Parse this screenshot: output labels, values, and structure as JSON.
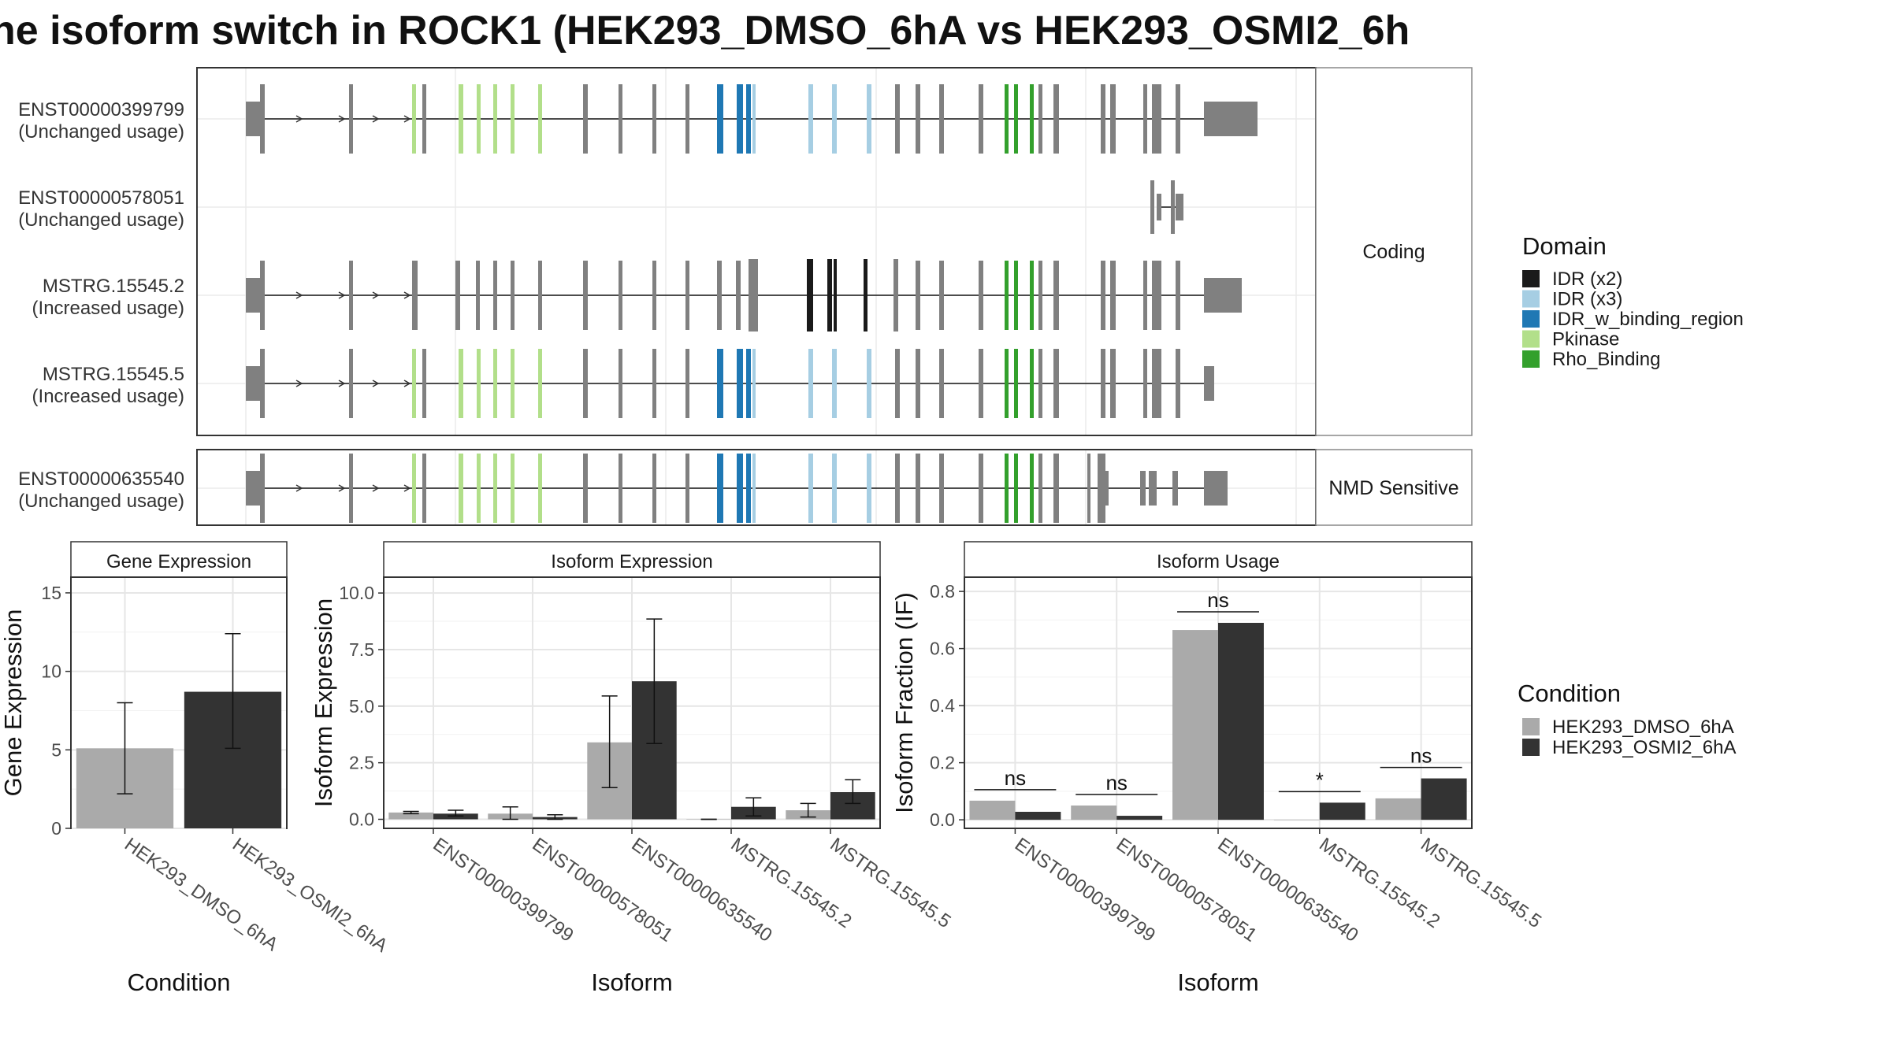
{
  "title": "ne isoform switch in ROCK1 (HEK293_DMSO_6hA vs HEK293_OSMI2_6h",
  "colors": {
    "exon": "#808080",
    "dmso": "#aaaaaa",
    "osmi": "#333333",
    "IDR (x2)": "#1a1a1a",
    "IDR (x3)": "#a6cee3",
    "IDR_w_binding_region": "#1f78b4",
    "Pkinase": "#b2df8a",
    "Rho_Binding": "#33a02c"
  },
  "transcripts": {
    "strip_labels": [
      "Coding",
      "NMD Sensitive"
    ],
    "rows": [
      {
        "id": "ENST00000399799",
        "usage": "(Unchanged usage)",
        "group": "Coding"
      },
      {
        "id": "ENST00000578051",
        "usage": "(Unchanged usage)",
        "group": "Coding"
      },
      {
        "id": "MSTRG.15545.2",
        "usage": "(Increased usage)",
        "group": "Coding"
      },
      {
        "id": "MSTRG.15545.5",
        "usage": "(Increased usage)",
        "group": "Coding"
      },
      {
        "id": "ENST00000635540",
        "usage": "(Unchanged usage)",
        "group": "NMD Sensitive"
      }
    ]
  },
  "domain_legend": {
    "title": "Domain",
    "items": [
      "IDR (x2)",
      "IDR (x3)",
      "IDR_w_binding_region",
      "Pkinase",
      "Rho_Binding"
    ]
  },
  "condition_legend": {
    "title": "Condition",
    "items": [
      "HEK293_DMSO_6hA",
      "HEK293_OSMI2_6hA"
    ]
  },
  "chart_data": [
    {
      "type": "bar",
      "panel": "Gene Expression",
      "categories": [
        "HEK293_DMSO_6hA",
        "HEK293_OSMI2_6hA"
      ],
      "series": [
        {
          "name": "HEK293_DMSO_6hA",
          "values": [
            5.1,
            null
          ],
          "err_low": [
            2.2,
            null
          ],
          "err_high": [
            8.0,
            null
          ]
        },
        {
          "name": "HEK293_OSMI2_6hA",
          "values": [
            null,
            8.7
          ],
          "err_low": [
            null,
            5.1
          ],
          "err_high": [
            null,
            12.4
          ]
        }
      ],
      "xlabel": "Condition",
      "ylabel": "Gene Expression",
      "ylim": [
        0,
        16
      ],
      "yticks": [
        0,
        5,
        10,
        15
      ],
      "grid": true
    },
    {
      "type": "bar",
      "panel": "Isoform Expression",
      "categories": [
        "ENST00000399799",
        "ENST00000578051",
        "ENST00000635540",
        "MSTRG.15545.2",
        "MSTRG.15545.5"
      ],
      "series": [
        {
          "name": "HEK293_DMSO_6hA",
          "values": [
            0.3,
            0.25,
            3.4,
            0.0,
            0.4
          ],
          "err_low": [
            0.25,
            0.0,
            1.4,
            0.0,
            0.1
          ],
          "err_high": [
            0.35,
            0.55,
            5.45,
            0.0,
            0.7
          ]
        },
        {
          "name": "HEK293_OSMI2_6hA",
          "values": [
            0.25,
            0.1,
            6.1,
            0.55,
            1.2
          ],
          "err_low": [
            0.15,
            0.0,
            3.35,
            0.15,
            0.7
          ],
          "err_high": [
            0.4,
            0.2,
            8.85,
            0.95,
            1.75
          ]
        }
      ],
      "xlabel": "Isoform",
      "ylabel": "Isoform Expression",
      "ylim": [
        -0.4,
        10.7
      ],
      "yticks": [
        0.0,
        2.5,
        5.0,
        7.5,
        10.0
      ],
      "grid": true
    },
    {
      "type": "bar",
      "panel": "Isoform Usage",
      "categories": [
        "ENST00000399799",
        "ENST00000578051",
        "ENST00000635540",
        "MSTRG.15545.2",
        "MSTRG.15545.5"
      ],
      "series": [
        {
          "name": "HEK293_DMSO_6hA",
          "values": [
            0.067,
            0.05,
            0.665,
            0.0,
            0.075
          ]
        },
        {
          "name": "HEK293_OSMI2_6hA",
          "values": [
            0.028,
            0.014,
            0.69,
            0.06,
            0.145
          ]
        }
      ],
      "significance": [
        "ns",
        "ns",
        "ns",
        "*",
        "ns"
      ],
      "xlabel": "Isoform",
      "ylabel": "Isoform Fraction (IF)",
      "ylim": [
        -0.03,
        0.85
      ],
      "yticks": [
        0.0,
        0.2,
        0.4,
        0.6,
        0.8
      ],
      "grid": true
    }
  ]
}
